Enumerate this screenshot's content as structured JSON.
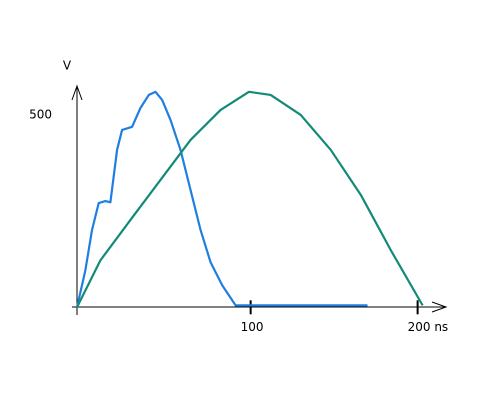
{
  "chart_data": {
    "type": "line",
    "y_label": "V",
    "xlim": [
      -4,
      217
    ],
    "ylim": [
      -20,
      570
    ],
    "xticks": [
      100,
      {
        "value": 200,
        "label": "200 ns"
      }
    ],
    "yticks": [
      500
    ],
    "series": [
      {
        "color": "#1f7fe0",
        "x": [
          -4,
          1,
          5,
          9,
          13,
          16,
          20,
          23,
          29,
          34,
          39,
          43,
          47,
          52,
          58,
          64,
          70,
          76,
          83,
          91,
          106,
          170
        ],
        "values": [
          0,
          96,
          201,
          271,
          276,
          273,
          409,
          461,
          469,
          518,
          552,
          560,
          539,
          487,
          409,
          305,
          201,
          117,
          57,
          5,
          5,
          5
        ]
      },
      {
        "color": "#138a78",
        "x": [
          -4,
          10,
          28,
          46,
          64,
          82,
          99,
          112,
          130,
          148,
          166,
          184,
          203
        ],
        "values": [
          0,
          122,
          227,
          331,
          435,
          513,
          560,
          552,
          500,
          409,
          292,
          148,
          5
        ]
      }
    ]
  }
}
